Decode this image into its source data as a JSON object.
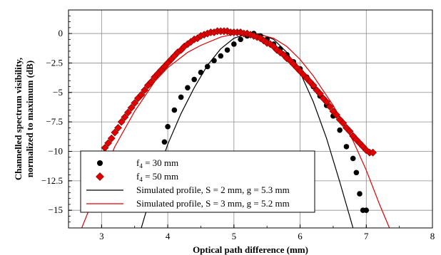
{
  "chart_data": {
    "type": "scatter",
    "xlabel": "Optical path difference (mm)",
    "ylabel_lines": [
      "Channelled spectrum visibility,",
      "normalized to maximum (dB)"
    ],
    "xlim": [
      2.5,
      8
    ],
    "ylim": [
      -16.5,
      2
    ],
    "x_ticks": [
      3,
      4,
      5,
      6,
      7,
      8
    ],
    "y_ticks": [
      0,
      -2.5,
      -5,
      -7.5,
      -10,
      -12.5,
      -15
    ],
    "y_tick_labels": [
      "0",
      "−2.5",
      "−5",
      "−7.5",
      "−10",
      "−12.5",
      "−15"
    ],
    "grid": true,
    "legend_position": "bottom-left",
    "series": [
      {
        "name_prefix": "f",
        "name_sub": "4",
        "name_rest": " = 30 mm",
        "kind": "points",
        "marker": "circle",
        "color": "#000000",
        "x": [
          3.95,
          4.0,
          4.1,
          4.2,
          4.3,
          4.4,
          4.5,
          4.6,
          4.7,
          4.8,
          4.9,
          5.0,
          5.1,
          5.2,
          5.3,
          5.4,
          5.5,
          5.6,
          5.7,
          5.8,
          5.9,
          6.0,
          6.1,
          6.2,
          6.3,
          6.4,
          6.5,
          6.6,
          6.7,
          6.8,
          6.85,
          6.9,
          6.95,
          7.0
        ],
        "y": [
          -9.2,
          -7.9,
          -6.5,
          -5.4,
          -4.6,
          -3.9,
          -3.3,
          -2.8,
          -2.3,
          -1.9,
          -1.4,
          -0.9,
          -0.5,
          -0.2,
          0,
          -0.2,
          -0.5,
          -0.9,
          -1.3,
          -1.8,
          -2.4,
          -3.0,
          -3.7,
          -4.5,
          -5.3,
          -6.1,
          -7.0,
          -8.2,
          -9.6,
          -10.6,
          -11.8,
          -13.6,
          -15.0,
          -15.0
        ]
      },
      {
        "name_prefix": "f",
        "name_sub": "4",
        "name_rest": " = 50 mm",
        "kind": "points",
        "marker": "diamond",
        "color": "#e00000",
        "x": [
          3.05,
          3.1,
          3.15,
          3.2,
          3.25,
          3.3,
          3.35,
          3.4,
          3.45,
          3.5,
          3.55,
          3.6,
          3.65,
          3.7,
          3.75,
          3.8,
          3.85,
          3.9,
          3.95,
          4.0,
          4.05,
          4.1,
          4.15,
          4.2,
          4.25,
          4.3,
          4.35,
          4.4,
          4.45,
          4.5,
          4.55,
          4.6,
          4.65,
          4.7,
          4.75,
          4.8,
          4.85,
          4.9,
          4.95,
          5.0,
          5.05,
          5.1,
          5.15,
          5.2,
          5.25,
          5.3,
          5.35,
          5.4,
          5.45,
          5.5,
          5.55,
          5.6,
          5.65,
          5.7,
          5.75,
          5.8,
          5.85,
          5.9,
          5.95,
          6.0,
          6.05,
          6.1,
          6.15,
          6.2,
          6.25,
          6.3,
          6.35,
          6.4,
          6.45,
          6.5,
          6.55,
          6.6,
          6.65,
          6.7,
          6.75,
          6.8,
          6.85,
          6.9,
          6.95,
          7.0,
          7.05,
          7.1
        ],
        "y": [
          -9.7,
          -9.3,
          -8.9,
          -8.4,
          -8.0,
          -7.5,
          -7.1,
          -6.7,
          -6.3,
          -5.9,
          -5.5,
          -5.2,
          -4.8,
          -4.4,
          -4.1,
          -3.7,
          -3.4,
          -3.1,
          -2.8,
          -2.5,
          -2.2,
          -1.9,
          -1.6,
          -1.4,
          -1.1,
          -0.9,
          -0.7,
          -0.5,
          -0.4,
          -0.2,
          -0.1,
          0,
          0.1,
          0.1,
          0.2,
          0.2,
          0.2,
          0.2,
          0.1,
          0.1,
          0.1,
          0.1,
          0,
          0,
          -0.1,
          -0.2,
          -0.3,
          -0.4,
          -0.6,
          -0.8,
          -0.9,
          -1.1,
          -1.4,
          -1.6,
          -1.8,
          -2.1,
          -2.3,
          -2.6,
          -2.9,
          -3.2,
          -3.5,
          -3.8,
          -4.1,
          -4.4,
          -4.8,
          -5.1,
          -5.5,
          -5.8,
          -6.2,
          -6.6,
          -6.9,
          -7.3,
          -7.6,
          -8.0,
          -8.3,
          -8.7,
          -9.0,
          -9.3,
          -9.6,
          -9.9,
          -10.1,
          -10.1
        ]
      },
      {
        "name": "Simulated profile, S = 2 mm, g = 5.3 mm",
        "kind": "line",
        "color": "#000000",
        "x": [
          3.6,
          3.8,
          4.0,
          4.2,
          4.4,
          4.6,
          4.8,
          5.0,
          5.2,
          5.3,
          5.4,
          5.6,
          5.8,
          6.0,
          6.2,
          6.4,
          6.6,
          6.8
        ],
        "y": [
          -16.5,
          -12.7,
          -9.4,
          -6.8,
          -4.6,
          -2.7,
          -1.3,
          -0.4,
          -0.03,
          0,
          -0.05,
          -0.5,
          -1.6,
          -3.3,
          -5.8,
          -8.9,
          -12.6,
          -16.5
        ]
      },
      {
        "name": "Simulated profile, S = 3 mm, g = 5.2 mm",
        "kind": "line",
        "color": "#e00000",
        "x": [
          2.7,
          3.0,
          3.2,
          3.5,
          3.8,
          4.0,
          4.3,
          4.5,
          4.8,
          5.0,
          5.2,
          5.4,
          5.6,
          5.8,
          6.0,
          6.2,
          6.5,
          6.8,
          7.0,
          7.2,
          7.35
        ],
        "y": [
          -16.5,
          -12.3,
          -9.6,
          -6.6,
          -4.1,
          -2.9,
          -1.6,
          -1.0,
          -0.3,
          -0.05,
          0,
          -0.1,
          -0.4,
          -1.1,
          -2.2,
          -3.6,
          -6.1,
          -9.1,
          -11.6,
          -14.5,
          -16.5
        ]
      }
    ]
  }
}
